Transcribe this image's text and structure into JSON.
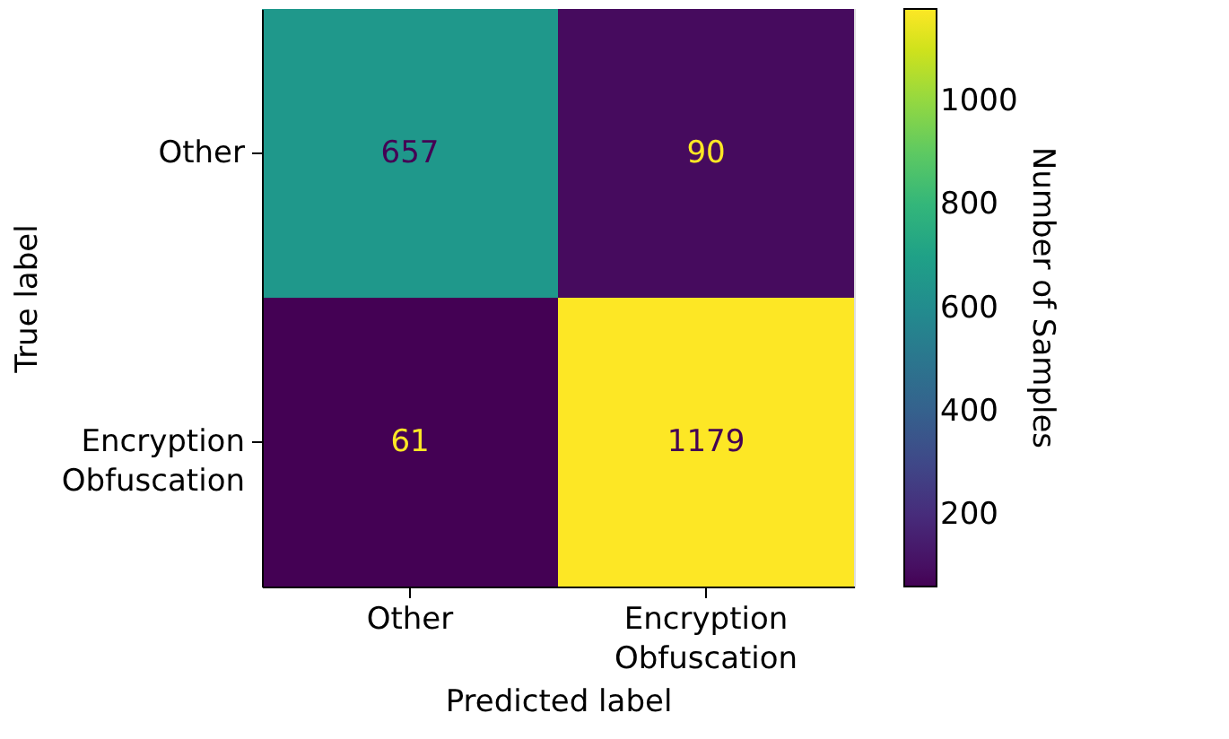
{
  "chart_data": {
    "type": "heatmap",
    "xlabel": "Predicted label",
    "ylabel": "True label",
    "clabel": "Number of Samples",
    "categories": [
      "Other",
      "Encryption\nObfuscation"
    ],
    "y_categories": [
      "Other",
      "Encryption\nObfuscation"
    ],
    "cells": [
      [
        657,
        90
      ],
      [
        61,
        1179
      ]
    ],
    "clim": [
      61,
      1179
    ],
    "cticks": [
      200,
      400,
      600,
      800,
      1000
    ],
    "data_labels": true
  }
}
